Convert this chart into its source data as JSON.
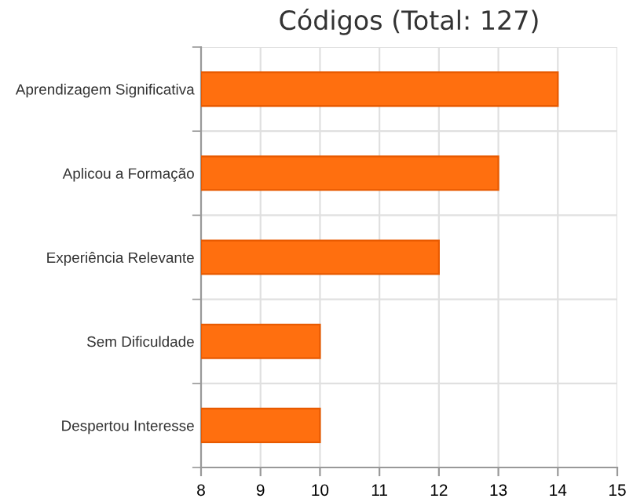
{
  "chart_data": {
    "type": "bar",
    "orientation": "horizontal",
    "title": "Códigos (Total: 127)",
    "categories": [
      "Aprendizagem Significativa",
      "Aplicou a Formação",
      "Experiência Relevante",
      "Sem Dificuldade",
      "Despertou Interesse"
    ],
    "values": [
      14,
      13,
      12,
      10,
      10
    ],
    "color": "#ff6f0f",
    "xlim": [
      8,
      15
    ],
    "xticks": [
      8,
      9,
      10,
      11,
      12,
      13,
      14,
      15
    ],
    "grid": true
  }
}
